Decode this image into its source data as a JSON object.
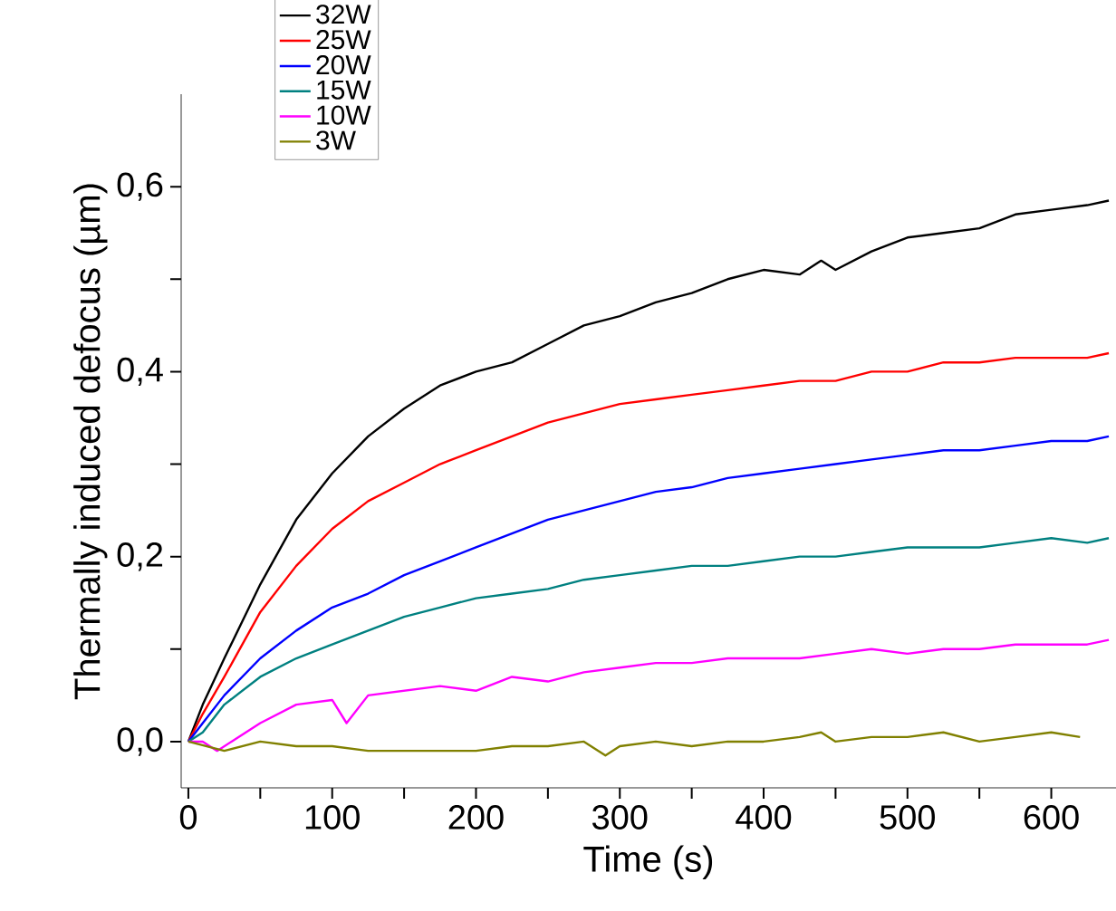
{
  "chart_data": {
    "type": "line",
    "xlabel": "Time (s)",
    "ylabel": "Thermally induced defocus (µm)",
    "xlim": [
      -5,
      645
    ],
    "ylim": [
      -0.05,
      0.7
    ],
    "xticks": [
      0,
      {
        "value": 50,
        "label": null
      },
      100,
      {
        "value": 150,
        "label": null
      },
      200,
      {
        "value": 250,
        "label": null
      },
      300,
      {
        "value": 350,
        "label": null
      },
      400,
      {
        "value": 450,
        "label": null
      },
      500,
      {
        "value": 550,
        "label": null
      },
      600
    ],
    "yticks": [
      {
        "value": 0,
        "label": "0,0"
      },
      {
        "value": 0.1,
        "label": null
      },
      {
        "value": 0.2,
        "label": "0,2"
      },
      {
        "value": 0.3,
        "label": null
      },
      {
        "value": 0.4,
        "label": "0,4"
      },
      {
        "value": 0.5,
        "label": null
      },
      {
        "value": 0.6,
        "label": "0,6"
      }
    ],
    "legend": "top left",
    "series": [
      {
        "name": "32W",
        "color": "#000000",
        "x": [
          0,
          10,
          25,
          50,
          75,
          100,
          125,
          150,
          175,
          200,
          225,
          250,
          275,
          300,
          325,
          350,
          375,
          400,
          425,
          440,
          450,
          475,
          500,
          525,
          550,
          575,
          600,
          625,
          640
        ],
        "values": [
          0,
          0.04,
          0.09,
          0.17,
          0.24,
          0.29,
          0.33,
          0.36,
          0.385,
          0.4,
          0.41,
          0.43,
          0.45,
          0.46,
          0.475,
          0.485,
          0.5,
          0.51,
          0.505,
          0.52,
          0.51,
          0.53,
          0.545,
          0.55,
          0.555,
          0.57,
          0.575,
          0.58,
          0.585
        ]
      },
      {
        "name": "25W",
        "color": "#ff0000",
        "x": [
          0,
          10,
          25,
          50,
          75,
          100,
          125,
          150,
          175,
          200,
          225,
          250,
          275,
          300,
          325,
          350,
          375,
          400,
          425,
          450,
          475,
          500,
          525,
          550,
          575,
          600,
          625,
          640
        ],
        "values": [
          0,
          0.03,
          0.07,
          0.14,
          0.19,
          0.23,
          0.26,
          0.28,
          0.3,
          0.315,
          0.33,
          0.345,
          0.355,
          0.365,
          0.37,
          0.375,
          0.38,
          0.385,
          0.39,
          0.39,
          0.4,
          0.4,
          0.41,
          0.41,
          0.415,
          0.415,
          0.415,
          0.42
        ]
      },
      {
        "name": "20W",
        "color": "#0000ff",
        "x": [
          0,
          10,
          25,
          50,
          75,
          100,
          125,
          150,
          175,
          200,
          225,
          250,
          275,
          300,
          325,
          350,
          375,
          400,
          425,
          450,
          475,
          500,
          525,
          550,
          575,
          600,
          625,
          640
        ],
        "values": [
          0,
          0.02,
          0.05,
          0.09,
          0.12,
          0.145,
          0.16,
          0.18,
          0.195,
          0.21,
          0.225,
          0.24,
          0.25,
          0.26,
          0.27,
          0.275,
          0.285,
          0.29,
          0.295,
          0.3,
          0.305,
          0.31,
          0.315,
          0.315,
          0.32,
          0.325,
          0.325,
          0.33
        ]
      },
      {
        "name": "15W",
        "color": "#008080",
        "x": [
          0,
          10,
          25,
          50,
          75,
          100,
          125,
          150,
          175,
          200,
          225,
          250,
          275,
          300,
          325,
          350,
          375,
          400,
          425,
          450,
          475,
          500,
          525,
          550,
          575,
          600,
          625,
          640
        ],
        "values": [
          0,
          0.01,
          0.04,
          0.07,
          0.09,
          0.105,
          0.12,
          0.135,
          0.145,
          0.155,
          0.16,
          0.165,
          0.175,
          0.18,
          0.185,
          0.19,
          0.19,
          0.195,
          0.2,
          0.2,
          0.205,
          0.21,
          0.21,
          0.21,
          0.215,
          0.22,
          0.215,
          0.22
        ]
      },
      {
        "name": "10W",
        "color": "#ff00ff",
        "x": [
          0,
          10,
          20,
          30,
          50,
          75,
          100,
          110,
          125,
          150,
          175,
          200,
          225,
          250,
          275,
          300,
          325,
          350,
          375,
          400,
          425,
          450,
          475,
          500,
          525,
          550,
          575,
          600,
          625,
          640
        ],
        "values": [
          0,
          0,
          -0.01,
          0,
          0.02,
          0.04,
          0.045,
          0.02,
          0.05,
          0.055,
          0.06,
          0.055,
          0.07,
          0.065,
          0.075,
          0.08,
          0.085,
          0.085,
          0.09,
          0.09,
          0.09,
          0.095,
          0.1,
          0.095,
          0.1,
          0.1,
          0.105,
          0.105,
          0.105,
          0.11
        ]
      },
      {
        "name": "3W",
        "color": "#808000",
        "x": [
          0,
          25,
          50,
          75,
          100,
          125,
          150,
          175,
          200,
          225,
          250,
          275,
          290,
          300,
          325,
          350,
          375,
          400,
          425,
          440,
          450,
          475,
          500,
          525,
          550,
          575,
          600,
          620
        ],
        "values": [
          0,
          -0.01,
          0,
          -0.005,
          -0.005,
          -0.01,
          -0.01,
          -0.01,
          -0.01,
          -0.005,
          -0.005,
          0,
          -0.015,
          -0.005,
          0,
          -0.005,
          0,
          0,
          0.005,
          0.01,
          0,
          0.005,
          0.005,
          0.01,
          0,
          0.005,
          0.01,
          0.005
        ]
      }
    ]
  }
}
